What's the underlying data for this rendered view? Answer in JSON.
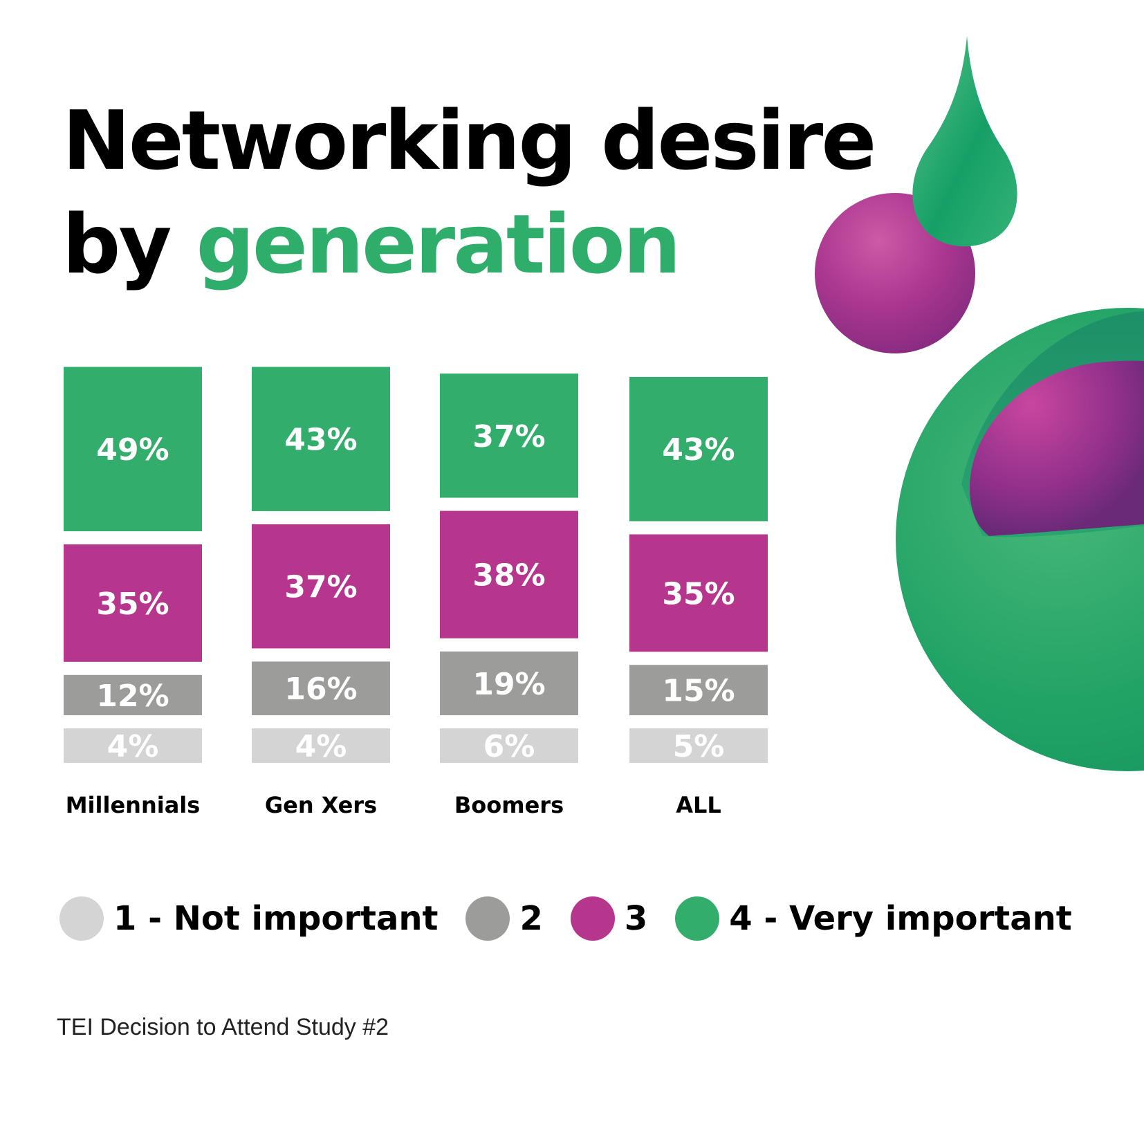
{
  "header": {
    "title_line1": "Networking desire",
    "title_by": "by ",
    "title_accent": "generation"
  },
  "colors": {
    "level1": "#d4d4d4",
    "level2": "#9c9c9b",
    "level3": "#b5368c",
    "level4": "#33ad6b",
    "accent": "#2fad6a"
  },
  "chart_data": {
    "type": "bar",
    "stacked": true,
    "categories": [
      "Millennials",
      "Gen Xers",
      "Boomers",
      "ALL"
    ],
    "series": [
      {
        "name": "1 - Not important",
        "values": [
          4,
          4,
          6,
          5
        ]
      },
      {
        "name": "2",
        "values": [
          12,
          16,
          19,
          15
        ]
      },
      {
        "name": "3",
        "values": [
          35,
          37,
          38,
          35
        ]
      },
      {
        "name": "4 - Very important",
        "values": [
          49,
          43,
          37,
          43
        ]
      }
    ],
    "value_suffix": "%",
    "legend_position": "bottom",
    "grid": false
  },
  "legend": [
    {
      "label": "1 - Not important",
      "color": "#d4d4d4"
    },
    {
      "label": "2",
      "color": "#9c9c9b"
    },
    {
      "label": "3",
      "color": "#b5368c"
    },
    {
      "label": "4 - Very important",
      "color": "#33ad6b"
    }
  ],
  "footer": {
    "source": "TEI Decision to Attend Study #2"
  }
}
